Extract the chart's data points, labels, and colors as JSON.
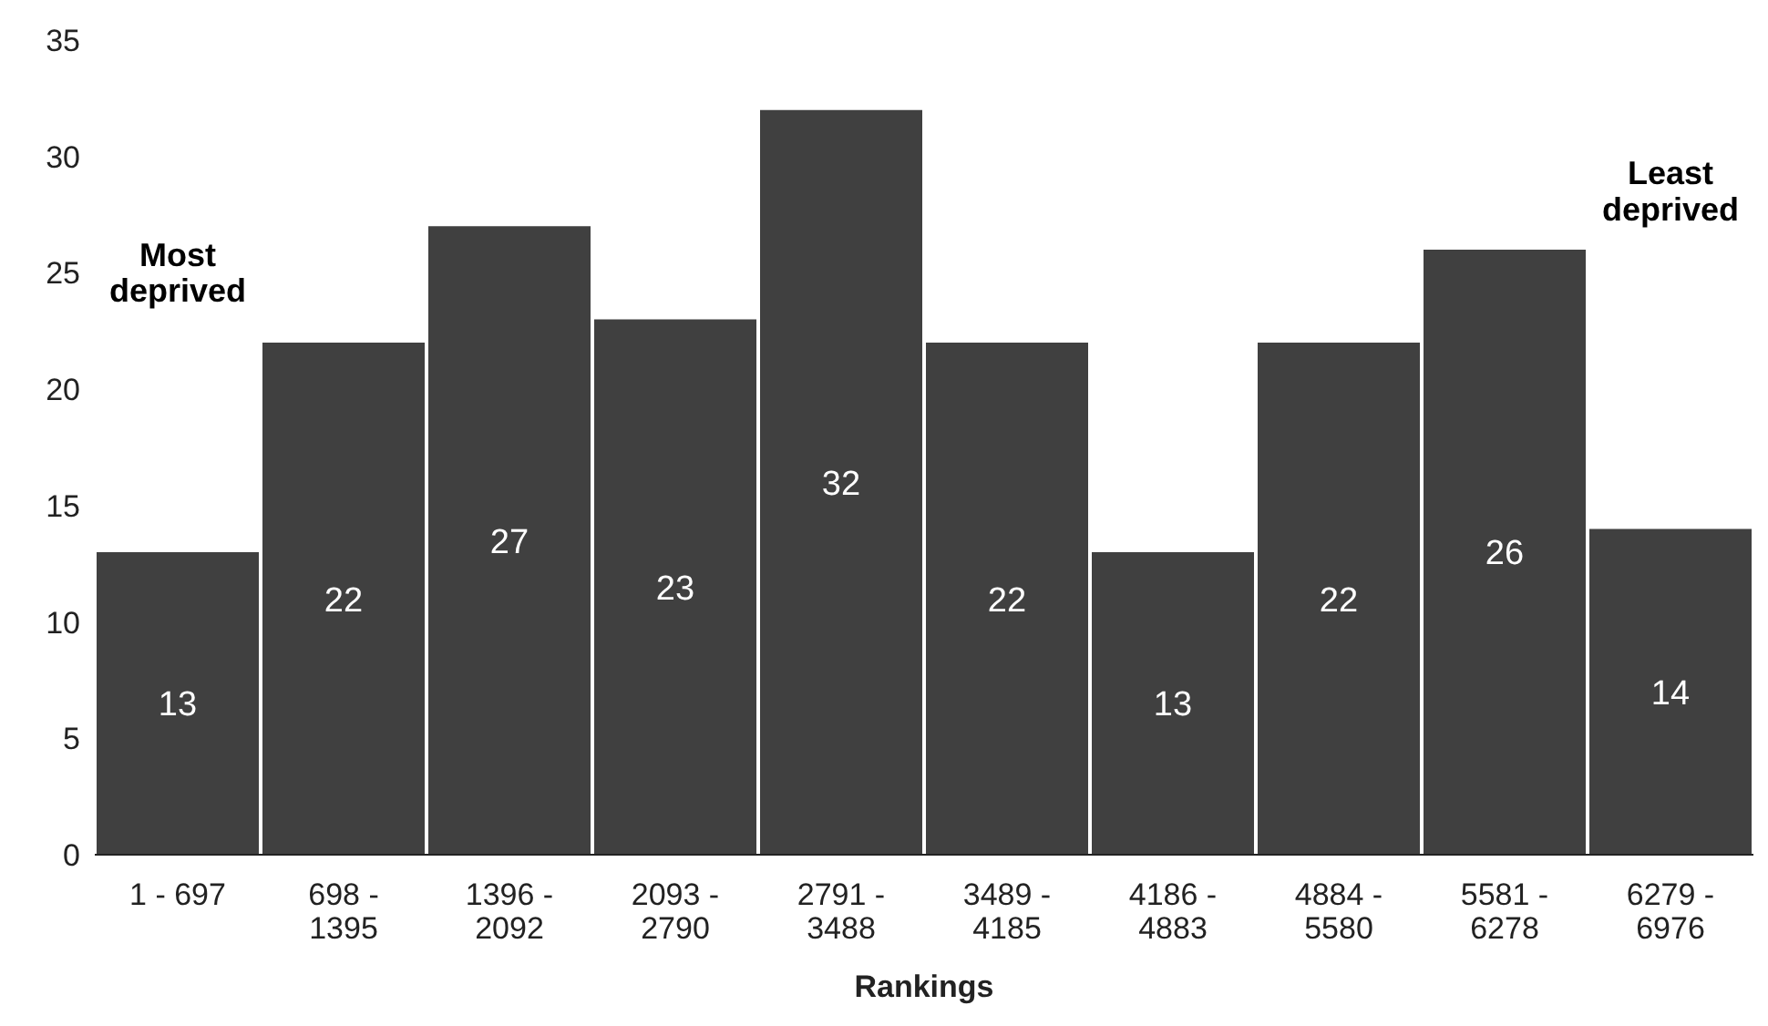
{
  "chart_data": {
    "type": "bar",
    "xlabel": "Rankings",
    "categories": [
      "1 - 697",
      "698 - 1395",
      "1396 - 2092",
      "2093 - 2790",
      "2791 - 3488",
      "3489 - 4185",
      "4186 - 4883",
      "4884 - 5580",
      "5581 - 6278",
      "6279 - 6976"
    ],
    "values": [
      13,
      22,
      27,
      23,
      32,
      22,
      13,
      22,
      26,
      14
    ],
    "color": "#404040",
    "data_labels": true,
    "ylim": [
      0,
      35
    ],
    "yticks": [
      0,
      5,
      10,
      15,
      20,
      25,
      30,
      35
    ],
    "grid": false,
    "legend": false,
    "annotations": [
      "Most deprived",
      "Least deprived"
    ]
  }
}
